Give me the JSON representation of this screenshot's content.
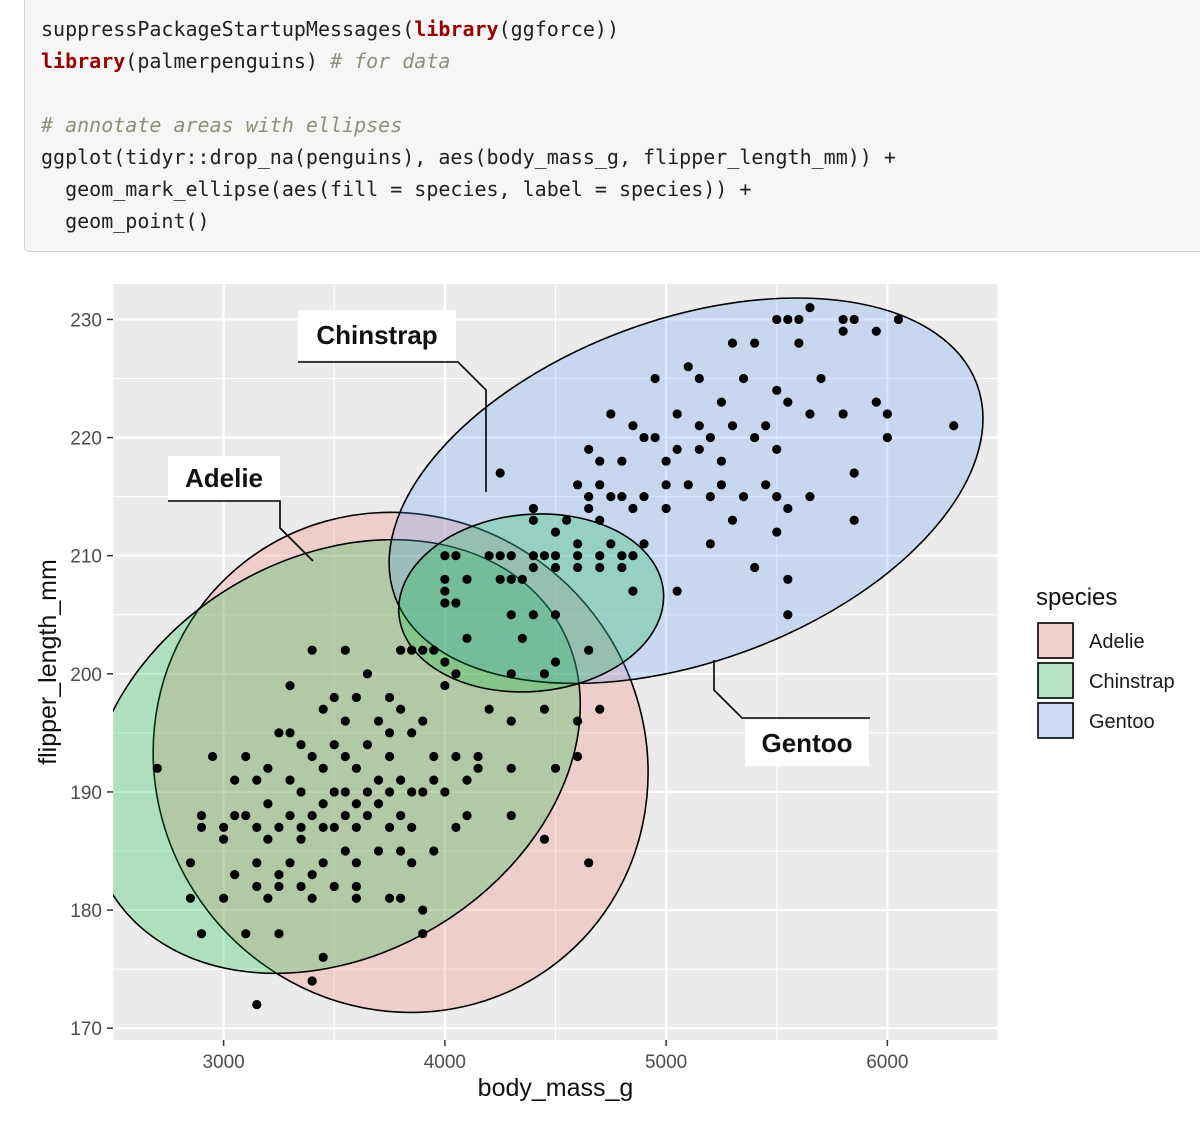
{
  "code": {
    "line1": {
      "a": "suppressPackageStartupMessages(",
      "kw": "library",
      "b": "(ggforce))"
    },
    "line2": {
      "kw": "library",
      "b": "(palmerpenguins) ",
      "comment": "# for data"
    },
    "line3": {
      "comment": "# annotate areas with ellipses"
    },
    "line4": "ggplot(tidyr::drop_na(penguins), aes(body_mass_g, flipper_length_mm)) +",
    "line5": "  geom_mark_ellipse(aes(fill = species, label = species)) +",
    "line6": "  geom_point()"
  },
  "chart_data": {
    "type": "scatter",
    "xlabel": "body_mass_g",
    "ylabel": "flipper_length_mm",
    "xlim": [
      2500,
      6500
    ],
    "ylim": [
      169,
      233
    ],
    "xticks": [
      3000,
      4000,
      5000,
      6000
    ],
    "yticks": [
      170,
      180,
      190,
      200,
      210,
      220,
      230
    ],
    "grid": true,
    "legend": {
      "title": "species",
      "position": "right",
      "entries": [
        "Adelie",
        "Chinstrap",
        "Gentoo"
      ]
    },
    "colors": {
      "Adelie": "#F8766D",
      "Chinstrap": "#00BA38",
      "Gentoo": "#619CFF"
    },
    "annotations": [
      "Chinstrap",
      "Adelie",
      "Gentoo"
    ],
    "ellipses": [
      {
        "species": "Adelie",
        "cx": 3800,
        "cy": 192.5,
        "semi_axes_units": [
          1100,
          21.5
        ],
        "rotation_deg": -38
      },
      {
        "species": "Chinstrap",
        "cx": 3500,
        "cy": 193,
        "semi_axes_units": [
          1180,
          16.8
        ],
        "rotation_deg": -31
      },
      {
        "species": "Gentoo",
        "cx": 5090,
        "cy": 215.5,
        "semi_axes_units": [
          1400,
          14.5
        ],
        "rotation_deg": -20
      },
      {
        "species": "Chinstrap",
        "cx": 4390,
        "cy": 206,
        "semi_axes_units": [
          600,
          7.5
        ],
        "rotation_deg": -5
      }
    ],
    "points": [
      [
        5650,
        231
      ],
      [
        5500,
        230
      ],
      [
        5550,
        230
      ],
      [
        5800,
        230
      ],
      [
        5850,
        230
      ],
      [
        6050,
        230
      ],
      [
        5600,
        230
      ],
      [
        5300,
        228
      ],
      [
        5400,
        228
      ],
      [
        5600,
        228
      ],
      [
        5800,
        229
      ],
      [
        5950,
        229
      ],
      [
        5100,
        226
      ],
      [
        5150,
        225
      ],
      [
        5350,
        225
      ],
      [
        5700,
        225
      ],
      [
        4950,
        225
      ],
      [
        5500,
        224
      ],
      [
        5250,
        223
      ],
      [
        5550,
        223
      ],
      [
        5650,
        222
      ],
      [
        5800,
        222
      ],
      [
        5950,
        223
      ],
      [
        6000,
        222
      ],
      [
        4750,
        222
      ],
      [
        5050,
        222
      ],
      [
        5150,
        221
      ],
      [
        5300,
        221
      ],
      [
        4850,
        221
      ],
      [
        4950,
        220
      ],
      [
        5450,
        221
      ],
      [
        6000,
        220
      ],
      [
        6300,
        221
      ],
      [
        4250,
        217
      ],
      [
        4700,
        218
      ],
      [
        5000,
        218
      ],
      [
        5200,
        220
      ],
      [
        5400,
        220
      ],
      [
        4900,
        220
      ],
      [
        5050,
        219
      ],
      [
        5150,
        219
      ],
      [
        5500,
        219
      ],
      [
        4650,
        219
      ],
      [
        4800,
        218
      ],
      [
        5250,
        218
      ],
      [
        5250,
        216
      ],
      [
        5450,
        216
      ],
      [
        5850,
        217
      ],
      [
        4600,
        216
      ],
      [
        4700,
        216
      ],
      [
        5000,
        216
      ],
      [
        5100,
        216
      ],
      [
        4650,
        215
      ],
      [
        4750,
        215
      ],
      [
        5200,
        215
      ],
      [
        5350,
        215
      ],
      [
        5500,
        215
      ],
      [
        5650,
        215
      ],
      [
        4800,
        215
      ],
      [
        4900,
        215
      ],
      [
        5550,
        214
      ],
      [
        4850,
        214
      ],
      [
        5300,
        213
      ],
      [
        5500,
        212
      ],
      [
        5850,
        213
      ],
      [
        4400,
        214
      ],
      [
        4550,
        213
      ],
      [
        4650,
        214
      ],
      [
        5000,
        214
      ],
      [
        4700,
        213
      ],
      [
        4400,
        213
      ],
      [
        4500,
        212
      ],
      [
        4600,
        211
      ],
      [
        5200,
        211
      ],
      [
        4000,
        210
      ],
      [
        4050,
        210
      ],
      [
        4200,
        210
      ],
      [
        4250,
        210
      ],
      [
        4300,
        210
      ],
      [
        4400,
        210
      ],
      [
        4450,
        210
      ],
      [
        4500,
        210
      ],
      [
        4600,
        210
      ],
      [
        4700,
        210
      ],
      [
        4800,
        210
      ],
      [
        4850,
        210
      ],
      [
        4750,
        211
      ],
      [
        4900,
        211
      ],
      [
        4000,
        208
      ],
      [
        4100,
        208
      ],
      [
        4250,
        208
      ],
      [
        4300,
        208
      ],
      [
        4350,
        208
      ],
      [
        4600,
        209
      ],
      [
        4400,
        209
      ],
      [
        4500,
        209
      ],
      [
        4700,
        209
      ],
      [
        4800,
        209
      ],
      [
        5400,
        209
      ],
      [
        5550,
        208
      ],
      [
        4000,
        207
      ],
      [
        4050,
        206
      ],
      [
        4000,
        206
      ],
      [
        4500,
        205
      ],
      [
        4400,
        205
      ],
      [
        4300,
        205
      ],
      [
        5050,
        207
      ],
      [
        4850,
        207
      ],
      [
        5550,
        205
      ],
      [
        4350,
        203
      ],
      [
        4650,
        202
      ],
      [
        4500,
        201
      ],
      [
        4000,
        201
      ],
      [
        4100,
        203
      ],
      [
        3900,
        202
      ],
      [
        4300,
        200
      ],
      [
        4450,
        200
      ],
      [
        3400,
        202
      ],
      [
        3550,
        202
      ],
      [
        3800,
        202
      ],
      [
        3850,
        202
      ],
      [
        3950,
        202
      ],
      [
        3650,
        200
      ],
      [
        4050,
        200
      ],
      [
        4000,
        199
      ],
      [
        3300,
        199
      ],
      [
        3500,
        198
      ],
      [
        3600,
        198
      ],
      [
        3750,
        198
      ],
      [
        3800,
        197
      ],
      [
        3450,
        197
      ],
      [
        3550,
        196
      ],
      [
        3700,
        196
      ],
      [
        3900,
        196
      ],
      [
        3750,
        195
      ],
      [
        3850,
        195
      ],
      [
        3250,
        195
      ],
      [
        3300,
        195
      ],
      [
        3350,
        194
      ],
      [
        3500,
        194
      ],
      [
        3650,
        194
      ],
      [
        3550,
        193
      ],
      [
        3750,
        193
      ],
      [
        3950,
        193
      ],
      [
        4050,
        193
      ],
      [
        4150,
        193
      ],
      [
        3100,
        193
      ],
      [
        3400,
        193
      ],
      [
        3200,
        192
      ],
      [
        3450,
        192
      ],
      [
        3600,
        192
      ],
      [
        3700,
        191
      ],
      [
        3800,
        191
      ],
      [
        3950,
        191
      ],
      [
        4100,
        191
      ],
      [
        3050,
        191
      ],
      [
        3150,
        191
      ],
      [
        3300,
        191
      ],
      [
        3350,
        190
      ],
      [
        3500,
        190
      ],
      [
        3550,
        190
      ],
      [
        3650,
        190
      ],
      [
        3750,
        190
      ],
      [
        3850,
        190
      ],
      [
        3900,
        190
      ],
      [
        4000,
        190
      ],
      [
        3200,
        189
      ],
      [
        3450,
        189
      ],
      [
        3600,
        189
      ],
      [
        3700,
        189
      ],
      [
        3800,
        188
      ],
      [
        3050,
        188
      ],
      [
        3100,
        188
      ],
      [
        3300,
        188
      ],
      [
        3400,
        188
      ],
      [
        3550,
        188
      ],
      [
        3650,
        188
      ],
      [
        3000,
        187
      ],
      [
        3150,
        187
      ],
      [
        3250,
        187
      ],
      [
        3350,
        187
      ],
      [
        3450,
        187
      ],
      [
        3500,
        187
      ],
      [
        3600,
        187
      ],
      [
        3750,
        187
      ],
      [
        3850,
        187
      ],
      [
        3000,
        186
      ],
      [
        3200,
        186
      ],
      [
        3350,
        186
      ],
      [
        3550,
        185
      ],
      [
        3700,
        185
      ],
      [
        3800,
        185
      ],
      [
        3950,
        185
      ],
      [
        3150,
        184
      ],
      [
        3300,
        184
      ],
      [
        3450,
        184
      ],
      [
        3600,
        184
      ],
      [
        3850,
        184
      ],
      [
        3050,
        183
      ],
      [
        3250,
        183
      ],
      [
        3400,
        183
      ],
      [
        3150,
        182
      ],
      [
        3250,
        182
      ],
      [
        3350,
        182
      ],
      [
        3500,
        182
      ],
      [
        3600,
        182
      ],
      [
        3000,
        181
      ],
      [
        3200,
        181
      ],
      [
        3400,
        181
      ],
      [
        3600,
        181
      ],
      [
        3750,
        181
      ],
      [
        3800,
        181
      ],
      [
        3900,
        180
      ],
      [
        2850,
        184
      ],
      [
        2850,
        181
      ],
      [
        2900,
        187
      ],
      [
        2900,
        188
      ],
      [
        2900,
        178
      ],
      [
        2950,
        193
      ],
      [
        2700,
        192
      ],
      [
        3100,
        178
      ],
      [
        3250,
        178
      ],
      [
        3150,
        172
      ],
      [
        3400,
        174
      ],
      [
        3450,
        176
      ],
      [
        3900,
        178
      ],
      [
        4300,
        188
      ],
      [
        4100,
        188
      ],
      [
        4300,
        192
      ],
      [
        4450,
        186
      ],
      [
        4650,
        184
      ],
      [
        4600,
        196
      ],
      [
        4450,
        197
      ],
      [
        4600,
        193
      ],
      [
        4300,
        196
      ],
      [
        4700,
        197
      ],
      [
        4500,
        192
      ],
      [
        4200,
        197
      ],
      [
        4050,
        187
      ],
      [
        4150,
        192
      ]
    ]
  }
}
